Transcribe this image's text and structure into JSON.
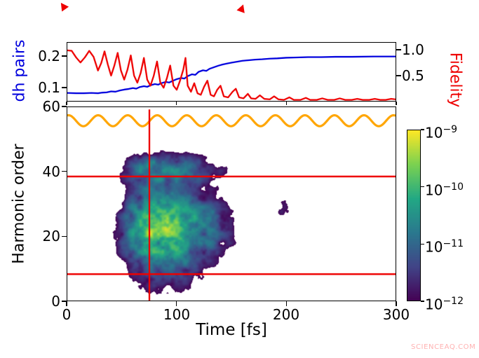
{
  "figure": {
    "watermark": "SCIENCEAQ.COM"
  },
  "colors": {
    "blue": "#0000dd",
    "red": "#ee0000",
    "orange": "#ffa500",
    "frame": "#000000",
    "watermark": "#ff9e9e"
  },
  "top_panel": {
    "ylabel_left": "dh pairs",
    "ylabel_right": "Fidelity",
    "yticks_left": [
      "0.2",
      "0.1"
    ],
    "ytick_values_left": [
      0.2,
      0.1
    ],
    "yticks_right": [
      "1.0",
      "0.5"
    ],
    "ytick_values_right": [
      1.0,
      0.5
    ],
    "xtick_values": [
      0,
      100,
      200,
      300
    ]
  },
  "main_panel": {
    "ylabel": "Harmonic order",
    "xlabel": "Time [fs]",
    "yticks": [
      "60",
      "40",
      "20",
      "0"
    ],
    "ytick_values": [
      60,
      40,
      20,
      0
    ],
    "xticks": [
      "0",
      "100",
      "200",
      "300"
    ],
    "xtick_values": [
      0,
      100,
      200,
      300
    ]
  },
  "colorbar": {
    "ticks": [
      {
        "base": "10",
        "exp": "−9"
      },
      {
        "base": "10",
        "exp": "−10"
      },
      {
        "base": "10",
        "exp": "−11"
      },
      {
        "base": "10",
        "exp": "−12"
      }
    ],
    "tick_exponents": [
      -9,
      -10,
      -11,
      -12
    ]
  },
  "chart_data": [
    {
      "type": "line",
      "title": "",
      "xlim": [
        0,
        300
      ],
      "ylim_left": [
        0.055,
        0.245
      ],
      "ylim_right": [
        0.0,
        1.15
      ],
      "series": [
        {
          "name": "dh pairs",
          "axis": "left",
          "color_key": "blue",
          "points": [
            [
              0,
              0.081
            ],
            [
              8,
              0.08
            ],
            [
              15,
              0.08
            ],
            [
              22,
              0.081
            ],
            [
              28,
              0.08
            ],
            [
              32,
              0.082
            ],
            [
              36,
              0.083
            ],
            [
              40,
              0.086
            ],
            [
              44,
              0.085
            ],
            [
              48,
              0.089
            ],
            [
              52,
              0.092
            ],
            [
              56,
              0.094
            ],
            [
              60,
              0.097
            ],
            [
              63,
              0.095
            ],
            [
              66,
              0.1
            ],
            [
              70,
              0.103
            ],
            [
              73,
              0.101
            ],
            [
              76,
              0.106
            ],
            [
              80,
              0.11
            ],
            [
              83,
              0.108
            ],
            [
              86,
              0.113
            ],
            [
              90,
              0.117
            ],
            [
              93,
              0.115
            ],
            [
              96,
              0.12
            ],
            [
              100,
              0.126
            ],
            [
              104,
              0.13
            ],
            [
              107,
              0.128
            ],
            [
              110,
              0.136
            ],
            [
              114,
              0.142
            ],
            [
              117,
              0.14
            ],
            [
              120,
              0.15
            ],
            [
              124,
              0.155
            ],
            [
              127,
              0.153
            ],
            [
              130,
              0.16
            ],
            [
              134,
              0.165
            ],
            [
              138,
              0.17
            ],
            [
              142,
              0.174
            ],
            [
              146,
              0.177
            ],
            [
              150,
              0.18
            ],
            [
              155,
              0.183
            ],
            [
              160,
              0.186
            ],
            [
              166,
              0.188
            ],
            [
              172,
              0.19
            ],
            [
              178,
              0.191
            ],
            [
              185,
              0.193
            ],
            [
              192,
              0.194
            ],
            [
              200,
              0.196
            ],
            [
              210,
              0.197
            ],
            [
              220,
              0.198
            ],
            [
              232,
              0.198
            ],
            [
              245,
              0.199
            ],
            [
              260,
              0.199
            ],
            [
              280,
              0.2
            ],
            [
              300,
              0.2
            ]
          ]
        },
        {
          "name": "Fidelity",
          "axis": "right",
          "color_key": "red",
          "points": [
            [
              0,
              1.0
            ],
            [
              4,
              0.99
            ],
            [
              8,
              0.86
            ],
            [
              12,
              0.76
            ],
            [
              16,
              0.86
            ],
            [
              20,
              0.99
            ],
            [
              24,
              0.87
            ],
            [
              28,
              0.6
            ],
            [
              31,
              0.75
            ],
            [
              34,
              0.98
            ],
            [
              37,
              0.72
            ],
            [
              40,
              0.5
            ],
            [
              43,
              0.7
            ],
            [
              46,
              0.95
            ],
            [
              49,
              0.6
            ],
            [
              52,
              0.42
            ],
            [
              55,
              0.62
            ],
            [
              58,
              0.9
            ],
            [
              61,
              0.5
            ],
            [
              64,
              0.36
            ],
            [
              67,
              0.55
            ],
            [
              70,
              0.85
            ],
            [
              73,
              0.42
            ],
            [
              76,
              0.3
            ],
            [
              79,
              0.5
            ],
            [
              82,
              0.78
            ],
            [
              85,
              0.36
            ],
            [
              88,
              0.26
            ],
            [
              91,
              0.45
            ],
            [
              94,
              0.7
            ],
            [
              97,
              0.3
            ],
            [
              100,
              0.22
            ],
            [
              103,
              0.4
            ],
            [
              106,
              0.62
            ],
            [
              108,
              0.85
            ],
            [
              110,
              0.3
            ],
            [
              113,
              0.18
            ],
            [
              116,
              0.35
            ],
            [
              119,
              0.15
            ],
            [
              122,
              0.12
            ],
            [
              125,
              0.28
            ],
            [
              128,
              0.4
            ],
            [
              131,
              0.12
            ],
            [
              134,
              0.09
            ],
            [
              137,
              0.22
            ],
            [
              140,
              0.3
            ],
            [
              143,
              0.09
            ],
            [
              147,
              0.07
            ],
            [
              151,
              0.18
            ],
            [
              154,
              0.24
            ],
            [
              157,
              0.07
            ],
            [
              161,
              0.05
            ],
            [
              165,
              0.14
            ],
            [
              168,
              0.05
            ],
            [
              172,
              0.04
            ],
            [
              176,
              0.11
            ],
            [
              180,
              0.04
            ],
            [
              185,
              0.03
            ],
            [
              189,
              0.09
            ],
            [
              193,
              0.03
            ],
            [
              198,
              0.02
            ],
            [
              203,
              0.07
            ],
            [
              207,
              0.02
            ],
            [
              213,
              0.02
            ],
            [
              218,
              0.06
            ],
            [
              222,
              0.02
            ],
            [
              228,
              0.02
            ],
            [
              233,
              0.05
            ],
            [
              238,
              0.02
            ],
            [
              244,
              0.02
            ],
            [
              249,
              0.05
            ],
            [
              254,
              0.02
            ],
            [
              260,
              0.02
            ],
            [
              265,
              0.04
            ],
            [
              270,
              0.02
            ],
            [
              276,
              0.02
            ],
            [
              281,
              0.04
            ],
            [
              286,
              0.02
            ],
            [
              291,
              0.02
            ],
            [
              296,
              0.04
            ],
            [
              300,
              0.03
            ]
          ]
        }
      ]
    },
    {
      "type": "heatmap",
      "xlabel": "Time [fs]",
      "ylabel": "Harmonic order",
      "xlim": [
        0,
        300
      ],
      "ylim": [
        0,
        60
      ],
      "colormap": "viridis",
      "color_scale": {
        "type": "log",
        "min_exponent": -12,
        "max_exponent": -9
      },
      "emission_region": {
        "t_start": 30,
        "t_end": 170,
        "t_peak": 80,
        "h_min": 4,
        "h_max": 47,
        "h_peak_band": [
          18,
          32
        ]
      },
      "gen": {
        "t_center": 80,
        "t_sigma_left": 28,
        "t_sigma_right": 55,
        "h_center": 23,
        "h_sigma_low": 15,
        "h_sigma_high": 11,
        "h2_center": 41,
        "h2_sigma": 5,
        "h2_weight": 0.5,
        "late_blob": {
          "t": 198,
          "h": 28,
          "t_sigma": 9,
          "h_sigma": 4.5,
          "weight": 0.22
        },
        "noise_scale": 13,
        "threshold": 0.13,
        "seed": 7
      },
      "overlays": {
        "orange_wave": {
          "center": 55.8,
          "amplitude": 1.7,
          "period_fs": 27,
          "phase": 1.3,
          "color_key": "orange"
        },
        "red_hlines": [
          38.5,
          8.2
        ],
        "red_vline": {
          "x": 75,
          "y_top": 59.3
        },
        "color_key": "red"
      }
    }
  ]
}
